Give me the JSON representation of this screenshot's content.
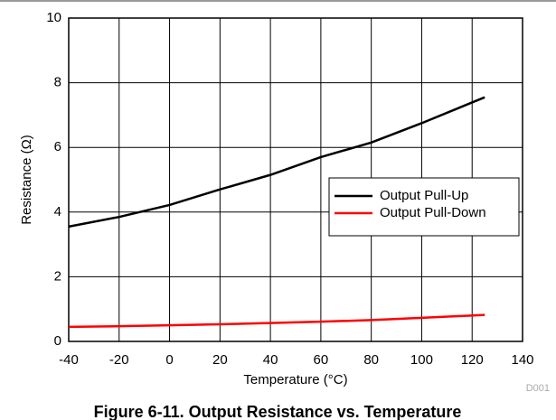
{
  "chart_data": {
    "type": "line",
    "title": "Figure 6-11. Output Resistance vs. Temperature",
    "xlabel": "Temperature (°C)",
    "ylabel": "Resistance (Ω)",
    "annotation": "D001",
    "x": [
      -40,
      -20,
      0,
      20,
      40,
      60,
      80,
      100,
      125
    ],
    "series": [
      {
        "name": "Output Pull-Up",
        "color": "#000000",
        "values": [
          3.55,
          3.85,
          4.22,
          4.7,
          5.15,
          5.7,
          6.15,
          6.75,
          7.55
        ]
      },
      {
        "name": "Output Pull-Down",
        "color": "#ff0000",
        "values": [
          0.45,
          0.47,
          0.5,
          0.53,
          0.57,
          0.61,
          0.66,
          0.73,
          0.82
        ]
      }
    ],
    "xlim": [
      -40,
      140
    ],
    "xticks": [
      -40,
      -20,
      0,
      20,
      40,
      60,
      80,
      100,
      120,
      140
    ],
    "ylim": [
      0,
      10
    ],
    "yticks": [
      0,
      2,
      4,
      6,
      8,
      10
    ],
    "grid": true,
    "legend": "center right"
  }
}
